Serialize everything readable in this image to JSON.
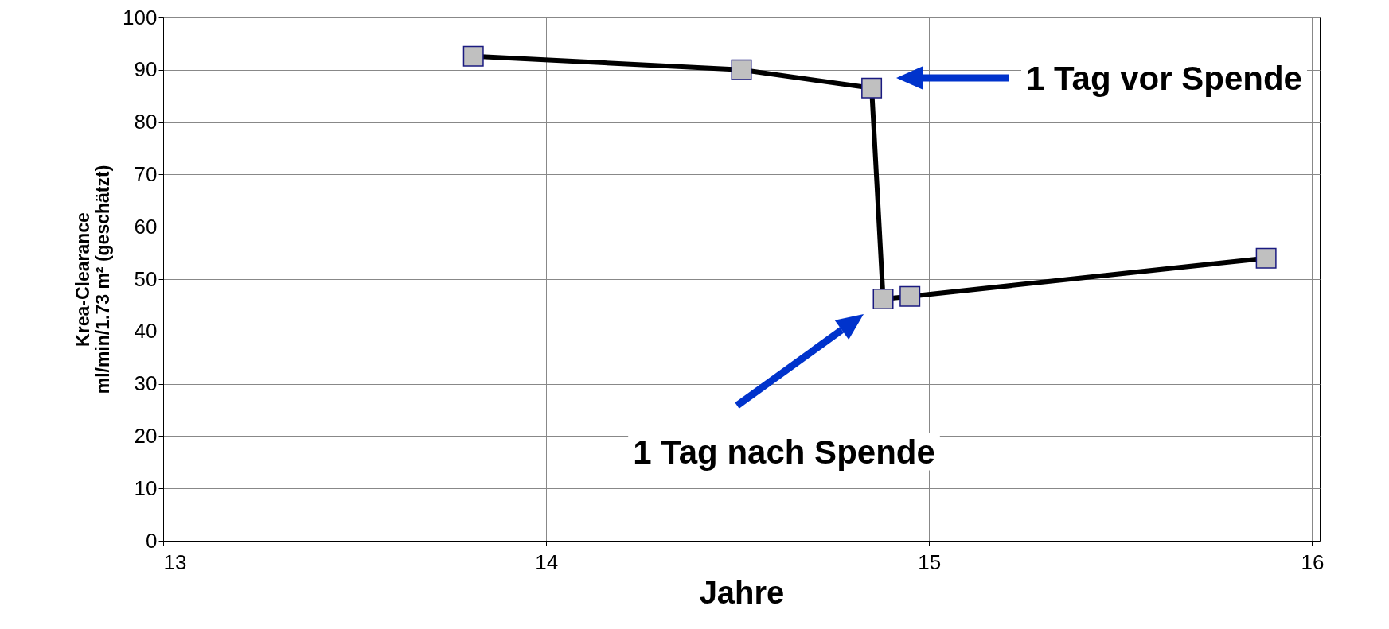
{
  "chart_data": {
    "type": "line",
    "xlabel": "Jahre",
    "ylabel": "Krea-Clearance\nml/min/1.73 m² (geschätzt)",
    "x": [
      13.81,
      14.51,
      14.85,
      14.88,
      14.95,
      15.88
    ],
    "series": [
      {
        "color": "#000000",
        "values": [
          92.6,
          90.0,
          86.5,
          46.2,
          46.7,
          54.0
        ]
      }
    ],
    "xlim": [
      13,
      16.02
    ],
    "xticks": [
      13,
      14,
      15,
      16
    ],
    "ylim": [
      0,
      100
    ],
    "yticks": [
      0,
      10,
      20,
      30,
      40,
      50,
      60,
      70,
      80,
      90,
      100
    ],
    "grid": true,
    "marker": "square",
    "line_style": "solid",
    "annotations": [
      "1 Tag vor Spende",
      "1 Tag nach Spende"
    ]
  }
}
